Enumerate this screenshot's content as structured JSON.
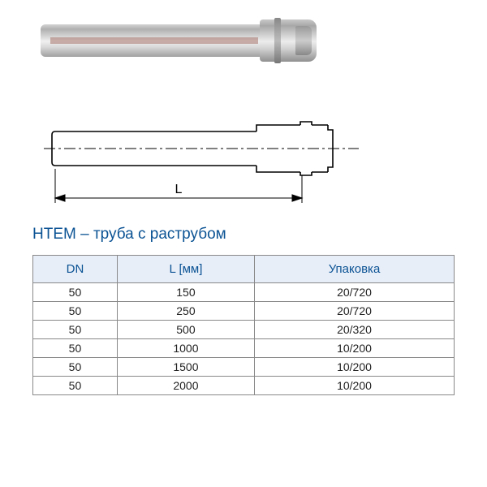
{
  "title": "HTEM – труба с раструбом",
  "diagram": {
    "length_label": "L",
    "stroke_color": "#000000",
    "stroke_width": 1.6,
    "centerline_color": "#000000"
  },
  "table": {
    "columns": [
      "DN",
      "L [мм]",
      "Упаковка"
    ],
    "rows": [
      [
        "50",
        "150",
        "20/720"
      ],
      [
        "50",
        "250",
        "20/720"
      ],
      [
        "50",
        "500",
        "20/320"
      ],
      [
        "50",
        "1000",
        "10/200"
      ],
      [
        "50",
        "1500",
        "10/200"
      ],
      [
        "50",
        "2000",
        "10/200"
      ]
    ],
    "header_bg": "#e8eef8",
    "header_color": "#0b5394",
    "border_color": "#888888"
  },
  "photo": {
    "body_gradient_top": "#d4d4d4",
    "body_gradient_bottom": "#a0a0a0",
    "stripe_color": "#a8746c"
  }
}
